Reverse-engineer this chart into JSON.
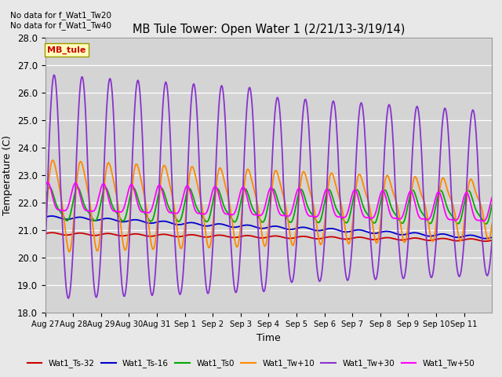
{
  "title": "MB Tule Tower: Open Water 1 (2/21/13-3/19/14)",
  "xlabel": "Time",
  "ylabel": "Temperature (C)",
  "ylim": [
    18.0,
    28.0
  ],
  "yticks": [
    18.0,
    19.0,
    20.0,
    21.0,
    22.0,
    23.0,
    24.0,
    25.0,
    26.0,
    27.0,
    28.0
  ],
  "xtick_labels": [
    "Aug 27",
    "Aug 28",
    "Aug 29",
    "Aug 30",
    "Aug 31",
    "Sep 1",
    "Sep 2",
    "Sep 3",
    "Sep 4",
    "Sep 5",
    "Sep 6",
    "Sep 7",
    "Sep 8",
    "Sep 9",
    "Sep 10",
    "Sep 11"
  ],
  "n_days": 16,
  "annotation_text": "No data for f_Wat1_Tw20\nNo data for f_Wat1_Tw40",
  "legend_box_label": "MB_tule",
  "fig_bg_color": "#e8e8e8",
  "plot_bg_color": "#d4d4d4",
  "grid_color": "#ffffff",
  "lines": [
    {
      "label": "Wat1_Ts-32",
      "color": "#cc0000",
      "lw": 1.3
    },
    {
      "label": "Wat1_Ts-16",
      "color": "#0000cc",
      "lw": 1.3
    },
    {
      "label": "Wat1_Ts0",
      "color": "#00aa00",
      "lw": 1.3
    },
    {
      "label": "Wat1_Tw+10",
      "color": "#ff8800",
      "lw": 1.3
    },
    {
      "label": "Wat1_Tw+30",
      "color": "#8833cc",
      "lw": 1.3
    },
    {
      "label": "Wat1_Tw+50",
      "color": "#ff00ff",
      "lw": 1.3
    }
  ]
}
